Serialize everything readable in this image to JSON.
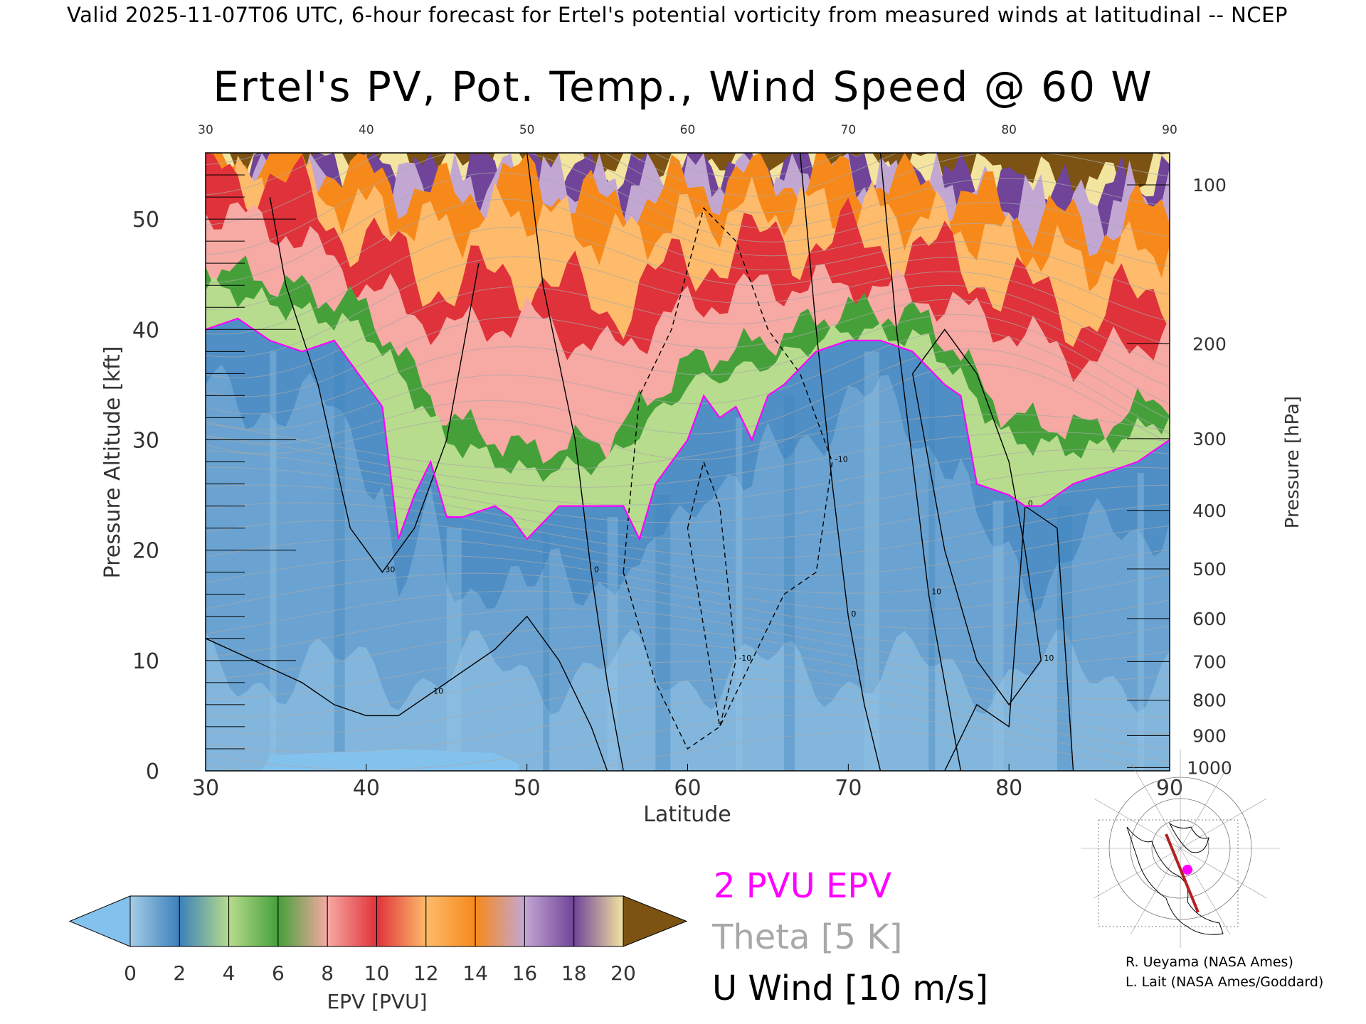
{
  "header_text": "Valid 2025-11-07T06 UTC, 6-hour forecast for Ertel's potential vorticity from measured winds at latitudinal -- NCEP",
  "chart_data": {
    "type": "heatmap",
    "title": "Ertel's PV, Pot. Temp., Wind Speed @ 60 W",
    "xlabel": "Latitude",
    "ylabel": "Pressure Altitude [kft]",
    "y2label": "Pressure [hPa]",
    "xlim": [
      30,
      90
    ],
    "ylim": [
      0,
      56
    ],
    "x_ticks": [
      "30",
      "40",
      "50",
      "60",
      "70",
      "80",
      "90"
    ],
    "y_ticks": [
      "0",
      "10",
      "20",
      "30",
      "40",
      "50"
    ],
    "pressure_ticks": [
      {
        "label": "100",
        "kft": 53.1
      },
      {
        "label": "200",
        "kft": 38.7
      },
      {
        "label": "300",
        "kft": 30.1
      },
      {
        "label": "400",
        "kft": 23.6
      },
      {
        "label": "500",
        "kft": 18.3
      },
      {
        "label": "600",
        "kft": 13.8
      },
      {
        "label": "700",
        "kft": 9.9
      },
      {
        "label": "800",
        "kft": 6.4
      },
      {
        "label": "900",
        "kft": 3.2
      },
      {
        "label": "1000",
        "kft": 0.3
      }
    ],
    "tropopause_2pvu": {
      "name": "2 PVU EPV",
      "lat": [
        30,
        32,
        34,
        36,
        38,
        40,
        41,
        42,
        43,
        44,
        45,
        46,
        48,
        49,
        50,
        52,
        54,
        56,
        57,
        58,
        60,
        61,
        62,
        63,
        64,
        65,
        66,
        68,
        70,
        72,
        74,
        76,
        77,
        78,
        80,
        81,
        82,
        84,
        86,
        88,
        90
      ],
      "kft": [
        40,
        41,
        39,
        38,
        39,
        35,
        33,
        21,
        25,
        28,
        23,
        23,
        24,
        23,
        21,
        24,
        24,
        24,
        21,
        26,
        30,
        34,
        32,
        33,
        30,
        34,
        35,
        38,
        39,
        39,
        38,
        35,
        34,
        26,
        25,
        24,
        24,
        26,
        27,
        28,
        30
      ]
    },
    "epv_bands_top_kft": {
      "lat": [
        30,
        35,
        40,
        45,
        50,
        55,
        60,
        65,
        70,
        75,
        80,
        85,
        90
      ],
      "green_top": [
        46,
        44,
        42,
        32,
        29,
        30,
        37,
        39,
        42,
        41,
        32,
        31,
        34
      ],
      "red_top": [
        55,
        53,
        48,
        44,
        45,
        42,
        46,
        48,
        48,
        47,
        44,
        41,
        44
      ],
      "orange_top": [
        56,
        56,
        54,
        52,
        54,
        51,
        53,
        54,
        54,
        53,
        51,
        49,
        51
      ],
      "purple_top": [
        56,
        56,
        56,
        55,
        56,
        55,
        56,
        56,
        56,
        55,
        54,
        53,
        55
      ]
    },
    "u_wind_contours": [
      {
        "label": "10",
        "style": "solid",
        "lat": [
          30,
          33,
          36,
          38,
          40,
          42,
          44,
          46,
          48,
          50,
          52,
          54,
          55
        ],
        "kft": [
          12,
          10,
          8,
          6,
          5,
          5,
          7,
          9,
          11,
          14,
          10,
          4,
          0
        ]
      },
      {
        "label": "30",
        "style": "solid",
        "lat": [
          34,
          35,
          37,
          39,
          41,
          43,
          45,
          46,
          47
        ],
        "kft": [
          52,
          44,
          35,
          22,
          18,
          22,
          30,
          38,
          46
        ]
      },
      {
        "label": "0",
        "style": "solid",
        "lat": [
          50,
          51,
          53,
          54,
          55,
          56
        ],
        "kft": [
          56,
          44,
          30,
          18,
          8,
          0
        ]
      },
      {
        "label": "-10",
        "style": "dashed",
        "lat": [
          56,
          57,
          59,
          61,
          63,
          65,
          67,
          69,
          68,
          66,
          64,
          62,
          60,
          58,
          56
        ],
        "kft": [
          18,
          34,
          40,
          51,
          48,
          40,
          36,
          28,
          18,
          16,
          10,
          4,
          2,
          8,
          18
        ]
      },
      {
        "label": "-10",
        "style": "dashed",
        "lat": [
          60,
          61,
          62,
          63,
          62,
          60
        ],
        "kft": [
          22,
          28,
          24,
          10,
          4,
          22
        ]
      },
      {
        "label": "0",
        "style": "solid",
        "lat": [
          67,
          68,
          69,
          70,
          71,
          72
        ],
        "kft": [
          56,
          40,
          26,
          14,
          6,
          0
        ]
      },
      {
        "label": "10",
        "style": "solid",
        "lat": [
          72,
          73,
          74,
          75,
          76,
          77
        ],
        "kft": [
          56,
          40,
          28,
          16,
          8,
          0
        ]
      },
      {
        "label": "10",
        "style": "solid",
        "lat": [
          74,
          76,
          78,
          80,
          81,
          82,
          80,
          78,
          76,
          74
        ],
        "kft": [
          36,
          40,
          36,
          28,
          20,
          10,
          6,
          10,
          20,
          36
        ]
      },
      {
        "label": "0",
        "style": "solid",
        "lat": [
          76,
          78,
          80,
          81,
          83,
          84
        ],
        "kft": [
          0,
          6,
          4,
          24,
          22,
          0
        ]
      }
    ],
    "theta_label": "Theta [5 K]",
    "uwind_label": "U Wind [10 m/s]",
    "colorbar": {
      "label": "EPV [PVU]",
      "ticks": [
        "0",
        "2",
        "4",
        "6",
        "8",
        "10",
        "12",
        "14",
        "16",
        "18",
        "20"
      ],
      "colors": [
        "#a6cde6",
        "#3b80bb",
        "#b7dc8d",
        "#46a03a",
        "#f7a9a3",
        "#e0323a",
        "#fdbb6b",
        "#f7891b",
        "#c3a7d3",
        "#6f4499",
        "#f3e4a0",
        "#7c5312"
      ],
      "under_color": "#84c2ee",
      "over_color": "#7c5312"
    }
  },
  "colors": {
    "stratosphere_top": "#7c5312",
    "tropopause": "#ff00ff",
    "theta": "#a8a8a8"
  },
  "credits": [
    "R. Ueyama (NASA Ames)",
    "L. Lait (NASA Ames/Goddard)"
  ]
}
